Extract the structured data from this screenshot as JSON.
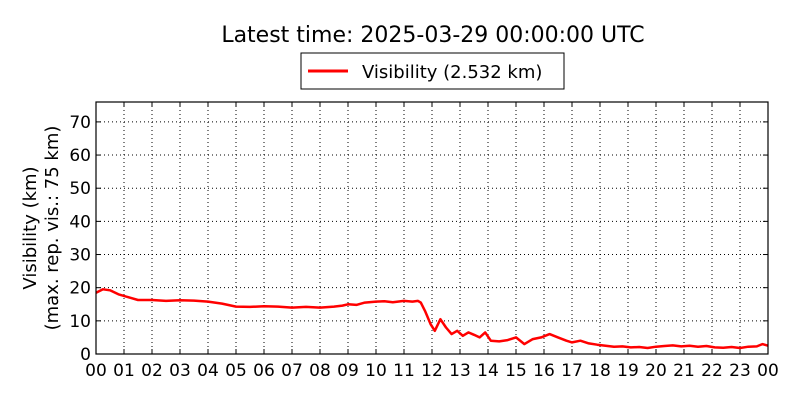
{
  "chart_data": {
    "type": "line",
    "title": "Latest time: 2025-03-29 00:00:00 UTC",
    "ylabel": "Visibility (km)",
    "ylabel_note": "(max. rep. vis.: 75 km)",
    "xlabel": "",
    "xlim": [
      0,
      24
    ],
    "ylim": [
      0,
      76
    ],
    "grid": true,
    "legend_position": "top-center",
    "x_tick_labels": [
      "00",
      "01",
      "02",
      "03",
      "04",
      "05",
      "06",
      "07",
      "08",
      "09",
      "10",
      "11",
      "12",
      "13",
      "14",
      "15",
      "16",
      "17",
      "18",
      "19",
      "20",
      "21",
      "22",
      "23",
      "00"
    ],
    "y_ticks": [
      0,
      10,
      20,
      30,
      40,
      50,
      60,
      70
    ],
    "series": [
      {
        "name": "Visibility (2.532 km)",
        "color": "#ff0000",
        "x": [
          0,
          0.25,
          0.5,
          0.8,
          1.2,
          1.5,
          2.0,
          2.5,
          3.0,
          3.5,
          4.0,
          4.5,
          5.0,
          5.5,
          6.0,
          6.5,
          7.0,
          7.5,
          8.0,
          8.5,
          8.8,
          9.0,
          9.3,
          9.6,
          10.0,
          10.3,
          10.6,
          11.0,
          11.3,
          11.5,
          11.6,
          11.75,
          11.85,
          11.95,
          12.1,
          12.3,
          12.5,
          12.7,
          12.9,
          13.1,
          13.3,
          13.5,
          13.7,
          13.9,
          14.1,
          14.4,
          14.7,
          15.0,
          15.3,
          15.6,
          15.9,
          16.2,
          16.5,
          16.8,
          17.0,
          17.3,
          17.6,
          17.9,
          18.2,
          18.5,
          18.8,
          19.1,
          19.4,
          19.7,
          20.0,
          20.3,
          20.6,
          20.9,
          21.2,
          21.5,
          21.8,
          22.1,
          22.4,
          22.7,
          23.0,
          23.3,
          23.6,
          23.8,
          24.0
        ],
        "values": [
          18.5,
          19.5,
          19.2,
          18.0,
          17.0,
          16.3,
          16.3,
          16.0,
          16.2,
          16.1,
          15.8,
          15.2,
          14.3,
          14.2,
          14.4,
          14.3,
          14.0,
          14.2,
          14.0,
          14.3,
          14.6,
          15.0,
          14.8,
          15.5,
          15.8,
          15.9,
          15.6,
          16.0,
          15.8,
          16.0,
          15.5,
          13.0,
          11.0,
          9.0,
          7.0,
          10.5,
          8.0,
          6.0,
          7.0,
          5.5,
          6.5,
          5.8,
          5.0,
          6.5,
          4.0,
          3.8,
          4.2,
          5.0,
          3.0,
          4.5,
          5.0,
          6.0,
          5.0,
          4.0,
          3.5,
          4.0,
          3.2,
          2.8,
          2.5,
          2.2,
          2.3,
          2.0,
          2.1,
          1.8,
          2.2,
          2.4,
          2.6,
          2.3,
          2.5,
          2.2,
          2.4,
          2.0,
          1.9,
          2.1,
          1.8,
          2.2,
          2.3,
          3.0,
          2.5
        ]
      }
    ]
  }
}
